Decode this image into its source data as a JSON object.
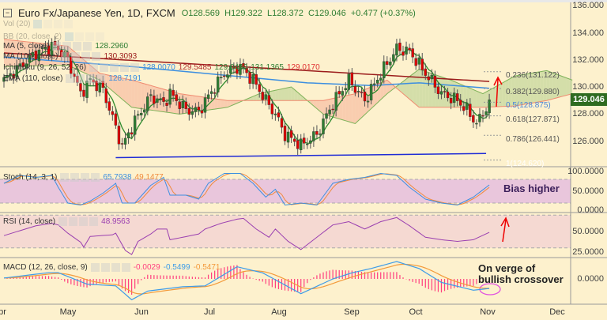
{
  "header": {
    "collapse_icon": "minus-square-icon",
    "symbol": "Euro Fx/Japanese Yen, 1D, FXCM",
    "open": "O128.569",
    "high": "H129.322",
    "low": "L128.372",
    "close": "C129.046",
    "change": "+0.477 (+0.37%)"
  },
  "legends": {
    "vol": {
      "label": "Vol (20)"
    },
    "bb": {
      "label": "BB (20, close, 2)"
    },
    "ma5": {
      "label": "MA (5, close)",
      "value": "128.2960"
    },
    "ma100": {
      "label": "MA (100, close)",
      "value": "130.3093"
    },
    "ichimoku": {
      "label": "Ichimoku (9, 26, 52, 26)",
      "v1": "128.0070",
      "v2": "129.5485",
      "v3": "129.0460",
      "v4": "131.1365",
      "v5": "129.0170"
    },
    "ema": {
      "label": "EMA (110, close)",
      "value": "128.7191"
    },
    "stoch": {
      "label": "Stoch (14, 3, 1)",
      "k": "65.7938",
      "d": "49.1477"
    },
    "rsi": {
      "label": "RSI (14, close)",
      "value": "48.9563"
    },
    "macd": {
      "label": "MACD (12, 26, close, 9)",
      "hist": "-0.0029",
      "macd": "-0.5499",
      "signal": "-0.5471"
    }
  },
  "fib_levels": [
    {
      "label": "0.236(131.122)",
      "price": 131.122,
      "color": "#555555"
    },
    {
      "label": "0.382(129.880)",
      "price": 129.88,
      "color": "#555555"
    },
    {
      "label": "0.5(128.875)",
      "price": 128.875,
      "color": "#4a86d8"
    },
    {
      "label": "0.618(127.871)",
      "price": 127.871,
      "color": "#555555"
    },
    {
      "label": "0.786(126.441)",
      "price": 126.441,
      "color": "#555555"
    },
    {
      "label": "1(124.620)",
      "price": 124.62,
      "color": "#ffffff"
    }
  ],
  "annotations": {
    "bias": "Bias higher",
    "crossover_1": "On verge of",
    "crossover_2": "bullish crossover"
  },
  "price_tag": "129.046",
  "axis": {
    "price_ticks": [
      "136.000",
      "134.000",
      "132.000",
      "130.000",
      "128.000",
      "126.000"
    ],
    "stoch_ticks": [
      "100.0000",
      "50.0000",
      "0.0000"
    ],
    "rsi_ticks": [
      "50.0000",
      "25.0000"
    ],
    "macd_ticks": [
      "0.0000"
    ],
    "time_ticks": [
      "pr",
      "May",
      "Jun",
      "Jul",
      "Aug",
      "Sep",
      "Oct",
      "Nov",
      "Dec"
    ]
  },
  "colors": {
    "bg": "#fdf1cd",
    "up": "#2e7d32",
    "down": "#e00000",
    "ma5": "#2e8b2e",
    "ma100": "#9b1b1b",
    "ema": "#3d8fe0",
    "trend": "#1f2bd6",
    "stochK": "#3d8fe0",
    "stochD": "#f08a3c",
    "rsi": "#9a3fb0",
    "macd": "#3d9be8",
    "signal": "#f39a3a",
    "hist": "#ff3f7f"
  },
  "chart_data": {
    "type": "candlestick",
    "title": "Euro Fx/Japanese Yen, 1D, FXCM",
    "ylim": [
      124.0,
      136.0
    ],
    "trading_days": 153,
    "close_keypoints": [
      [
        0,
        130.5
      ],
      [
        5,
        131.5
      ],
      [
        10,
        132.5
      ],
      [
        15,
        133.0
      ],
      [
        17,
        132.8
      ],
      [
        20,
        132.0
      ],
      [
        24,
        129.5
      ],
      [
        27,
        130.5
      ],
      [
        31,
        129.8
      ],
      [
        35,
        127.0
      ],
      [
        37,
        125.6
      ],
      [
        41,
        127.5
      ],
      [
        46,
        129.3
      ],
      [
        50,
        128.8
      ],
      [
        52,
        129.5
      ],
      [
        57,
        128.3
      ],
      [
        61,
        128.2
      ],
      [
        64,
        129.3
      ],
      [
        69,
        131.0
      ],
      [
        74,
        131.5
      ],
      [
        78,
        130.5
      ],
      [
        82,
        129.0
      ],
      [
        85,
        128.0
      ],
      [
        88,
        126.5
      ],
      [
        93,
        125.7
      ],
      [
        98,
        126.5
      ],
      [
        103,
        128.8
      ],
      [
        108,
        130.5
      ],
      [
        113,
        129.0
      ],
      [
        118,
        131.0
      ],
      [
        123,
        132.8
      ],
      [
        127,
        132.6
      ],
      [
        132,
        131.0
      ],
      [
        137,
        129.5
      ],
      [
        142,
        129.0
      ],
      [
        145,
        128.3
      ],
      [
        148,
        127.3
      ],
      [
        150,
        128.0
      ],
      [
        152,
        129.05
      ]
    ],
    "ma100_keypoints": [
      [
        0,
        132.5
      ],
      [
        95,
        131.2
      ],
      [
        152,
        130.4
      ]
    ],
    "ema110_keypoints": [
      [
        0,
        132.2
      ],
      [
        40,
        131.5
      ],
      [
        95,
        130.3
      ],
      [
        115,
        130.1
      ],
      [
        130,
        130.3
      ],
      [
        152,
        129.9
      ]
    ],
    "cloud_keypoints": [
      [
        0,
        131.5,
        133.5
      ],
      [
        20,
        131.6,
        133.0
      ],
      [
        30,
        130.5,
        131.0
      ],
      [
        40,
        128.5,
        130.5
      ],
      [
        55,
        128.0,
        129.5
      ],
      [
        70,
        128.5,
        129.0
      ],
      [
        80,
        129.5,
        129.0
      ],
      [
        90,
        130.0,
        129.0
      ],
      [
        100,
        128.0,
        129.0
      ],
      [
        110,
        127.3,
        129.5
      ],
      [
        120,
        129.5,
        130.5
      ],
      [
        130,
        131.3,
        128.5
      ],
      [
        140,
        130.5,
        128.5
      ],
      [
        150,
        129.5,
        128.5
      ],
      [
        160,
        130.8,
        128.6
      ],
      [
        170,
        131.2,
        129.0
      ],
      [
        178,
        130.5,
        129.5
      ]
    ],
    "trendline": [
      [
        35,
        124.8
      ],
      [
        151,
        125.1
      ]
    ],
    "stoch_k_keypoints": [
      [
        0,
        70
      ],
      [
        5,
        90
      ],
      [
        10,
        85
      ],
      [
        15,
        90
      ],
      [
        17,
        60
      ],
      [
        20,
        20
      ],
      [
        24,
        15
      ],
      [
        27,
        25
      ],
      [
        31,
        45
      ],
      [
        35,
        70
      ],
      [
        37,
        20
      ],
      [
        41,
        20
      ],
      [
        46,
        65
      ],
      [
        50,
        85
      ],
      [
        52,
        40
      ],
      [
        57,
        40
      ],
      [
        61,
        30
      ],
      [
        64,
        70
      ],
      [
        69,
        95
      ],
      [
        74,
        95
      ],
      [
        78,
        70
      ],
      [
        82,
        35
      ],
      [
        85,
        55
      ],
      [
        88,
        15
      ],
      [
        93,
        20
      ],
      [
        98,
        15
      ],
      [
        103,
        70
      ],
      [
        108,
        80
      ],
      [
        113,
        85
      ],
      [
        118,
        95
      ],
      [
        123,
        90
      ],
      [
        127,
        60
      ],
      [
        132,
        30
      ],
      [
        137,
        20
      ],
      [
        142,
        15
      ],
      [
        147,
        35
      ],
      [
        152,
        66
      ]
    ],
    "rsi_keypoints": [
      [
        0,
        45
      ],
      [
        5,
        51
      ],
      [
        10,
        57
      ],
      [
        15,
        60
      ],
      [
        17,
        58
      ],
      [
        20,
        48
      ],
      [
        24,
        37
      ],
      [
        25,
        31
      ],
      [
        27,
        44
      ],
      [
        34,
        46
      ],
      [
        35,
        48
      ],
      [
        38,
        27
      ],
      [
        40,
        22
      ],
      [
        42,
        38
      ],
      [
        46,
        47
      ],
      [
        48,
        53
      ],
      [
        51,
        53
      ],
      [
        52,
        40
      ],
      [
        56,
        43
      ],
      [
        61,
        47
      ],
      [
        63,
        53
      ],
      [
        68,
        60
      ],
      [
        73,
        65
      ],
      [
        75,
        66
      ],
      [
        79,
        53
      ],
      [
        83,
        43
      ],
      [
        85,
        53
      ],
      [
        89,
        38
      ],
      [
        93,
        28
      ],
      [
        98,
        43
      ],
      [
        103,
        58
      ],
      [
        108,
        62
      ],
      [
        113,
        53
      ],
      [
        118,
        62
      ],
      [
        123,
        67
      ],
      [
        127,
        57
      ],
      [
        132,
        43
      ],
      [
        137,
        40
      ],
      [
        142,
        38
      ],
      [
        147,
        40
      ],
      [
        152,
        49
      ]
    ],
    "macd_keypoints": [
      [
        0,
        0.05
      ],
      [
        14,
        0.36
      ],
      [
        17,
        0.36
      ],
      [
        26,
        -0.3
      ],
      [
        35,
        -0.4
      ],
      [
        40,
        -1.2
      ],
      [
        45,
        -0.7
      ],
      [
        56,
        -0.45
      ],
      [
        63,
        -0.4
      ],
      [
        73,
        0.7
      ],
      [
        81,
        0.35
      ],
      [
        93,
        -0.85
      ],
      [
        103,
        0.0
      ],
      [
        109,
        0.35
      ],
      [
        115,
        0.6
      ],
      [
        123,
        1.0
      ],
      [
        130,
        0.6
      ],
      [
        137,
        -0.2
      ],
      [
        147,
        -0.65
      ],
      [
        152,
        -0.55
      ]
    ],
    "stoch_bands": [
      20,
      80
    ],
    "rsi_bands": [
      30,
      70
    ]
  }
}
